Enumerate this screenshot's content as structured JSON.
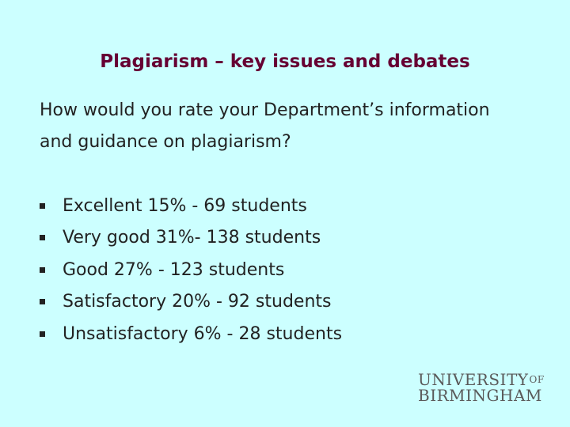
{
  "slide": {
    "title": "Plagiarism – key issues and debates",
    "question_line1": "How would you rate your Department’s information",
    "question_line2": "and guidance on plagiarism?",
    "bullets": [
      "Excellent  15% - 69 students",
      "Very good  31%- 138 students",
      "Good  27% - 123 students",
      "Satisfactory 20% - 92 students",
      "Unsatisfactory 6% - 28 students"
    ]
  },
  "logo": {
    "line1": "UNIVERSITY",
    "of": "OF",
    "line2": "BIRMINGHAM"
  },
  "colors": {
    "background": "#ccffff",
    "title": "#660033",
    "text": "#222222"
  }
}
